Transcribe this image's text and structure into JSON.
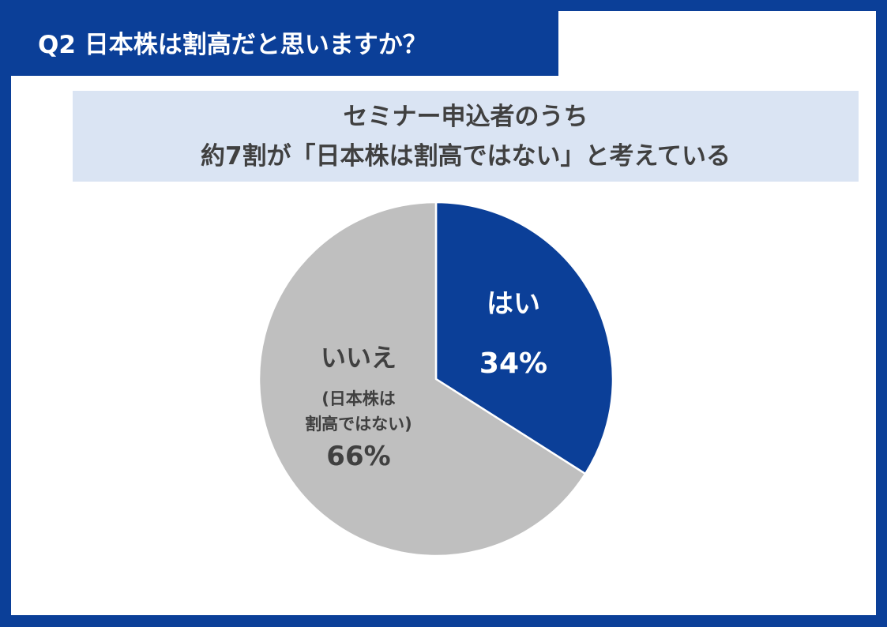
{
  "question": {
    "text": "Q2 日本株は割高だと思いますか？"
  },
  "headline": {
    "line1": "セミナー申込者のうち",
    "line2": "約7割が「日本株は割高ではない」と考えている"
  },
  "colors": {
    "brand": "#0b3f98",
    "headline_bg": "#dae4f3",
    "slice_yes": "#0b3f98",
    "slice_no": "#bfbfbf",
    "text_dark": "#404040"
  },
  "chart_data": {
    "type": "pie",
    "title": "",
    "slices": [
      {
        "label": "はい",
        "sublabel": "",
        "value": 34,
        "value_label": "34%"
      },
      {
        "label": "いいえ",
        "sublabel": "(日本株は 割高ではない)",
        "sublabel_lines": [
          "(日本株は",
          "割高ではない)"
        ],
        "value": 66,
        "value_label": "66%"
      }
    ],
    "start": "12 o'clock",
    "direction": "clockwise",
    "legend": "none"
  }
}
